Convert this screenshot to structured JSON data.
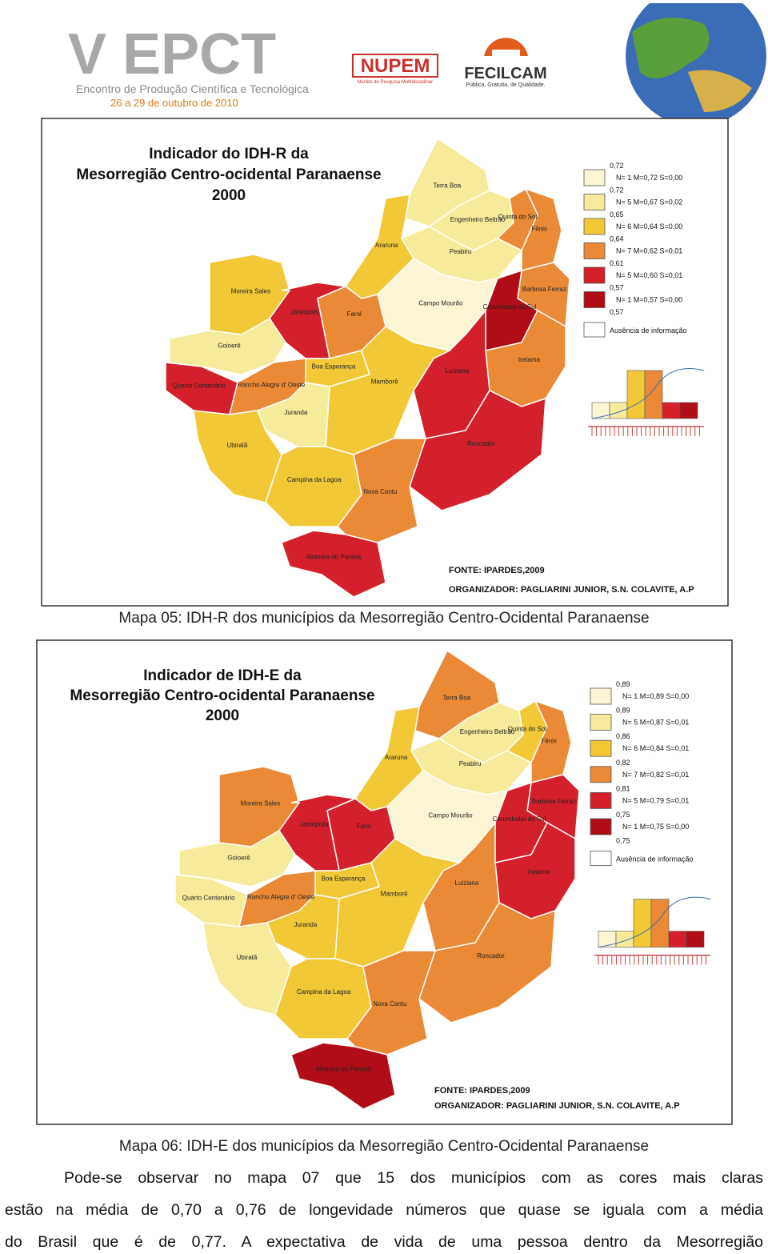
{
  "header": {
    "event": "V EPCT",
    "subtitle": "Encontro de Produção Científica e Tecnológica",
    "dates": "26 a 29 de outubro de 2010",
    "nupem": "NUPEM",
    "nupem_sub": "Núcleo de Pesquisa Multidisciplinar",
    "fecilcam": "FECILCAM",
    "fecilcam_sub": "Pública, Gratuita, de Qualidade."
  },
  "maps": [
    {
      "title": [
        "Indicador do IDH-R da",
        "Mesorregião Centro-ocidental Paranaense",
        "2000"
      ],
      "municipalities": [
        {
          "name": "Terra Boa",
          "color": "#f6eb9a"
        },
        {
          "name": "Engenheiro Beltrão",
          "color": "#f6eb9a"
        },
        {
          "name": "Quinta do Sol",
          "color": "#ea8a36"
        },
        {
          "name": "Fênix",
          "color": "#ea8a36"
        },
        {
          "name": "Peabiru",
          "color": "#f6eb9a"
        },
        {
          "name": "Araruna",
          "color": "#f2c837"
        },
        {
          "name": "Moreira Sales",
          "color": "#f2c837"
        },
        {
          "name": "Barbosa Ferraz",
          "color": "#ea8a36"
        },
        {
          "name": "Campo Mourão",
          "color": "#fbf5d3"
        },
        {
          "name": "Corumbataí do Sul",
          "color": "#b00d17"
        },
        {
          "name": "Janiópolis",
          "color": "#d3202a"
        },
        {
          "name": "Farol",
          "color": "#ea8a36"
        },
        {
          "name": "Goioerê",
          "color": "#f6eb9a"
        },
        {
          "name": "Boa Esperança",
          "color": "#f2c837"
        },
        {
          "name": "Quarto Centenário",
          "color": "#d3202a"
        },
        {
          "name": "Rancho Alegre d' Oeste",
          "color": "#ea8a36"
        },
        {
          "name": "Iretama",
          "color": "#ea8a36"
        },
        {
          "name": "Luiziana",
          "color": "#d3202a"
        },
        {
          "name": "Mamborê",
          "color": "#f2c837"
        },
        {
          "name": "Juranda",
          "color": "#f6eb9a"
        },
        {
          "name": "Ubiratã",
          "color": "#f2c837"
        },
        {
          "name": "Roncador",
          "color": "#d3202a"
        },
        {
          "name": "Campina da Lagoa",
          "color": "#f2c837"
        },
        {
          "name": "Nova Cantu",
          "color": "#ea8a36"
        },
        {
          "name": "Altamira do Paraná",
          "color": "#d3202a"
        }
      ],
      "legend": {
        "breaks": [
          "0,72",
          "0,72",
          "0,65",
          "0,64",
          "0,61",
          "0,57",
          "0,57"
        ],
        "classes": [
          {
            "color": "#fbf5d3",
            "label": "N= 1  M=0,72  S=0,00"
          },
          {
            "color": "#f6eb9a",
            "label": "N= 5  M=0,67  S=0,02"
          },
          {
            "color": "#f2c837",
            "label": "N= 6  M=0,64  S=0,00"
          },
          {
            "color": "#ea8a36",
            "label": "N= 7  M=0,62  S=0,01"
          },
          {
            "color": "#d3202a",
            "label": "N= 5  M=0,60  S=0,01"
          },
          {
            "color": "#b00d17",
            "label": "N= 1  M=0,57  S=0,00"
          }
        ],
        "no_data": "Ausência de informação"
      },
      "source": "FONTE: IPARDES,2009",
      "organizer": "ORGANIZADOR: PAGLIARINI JUNIOR, S.N. COLAVITE, A.P",
      "caption": "Mapa 05: IDH-R dos municípios da Mesorregião Centro-Ocidental Paranaense"
    },
    {
      "title": [
        "Indicador de IDH-E da",
        "Mesorregião Centro-ocidental Paranaense",
        "2000"
      ],
      "municipalities": [
        {
          "name": "Terra Boa",
          "color": "#ea8a36"
        },
        {
          "name": "Engenheiro Beltrão",
          "color": "#f6eb9a"
        },
        {
          "name": "Quinta do Sol",
          "color": "#f2c837"
        },
        {
          "name": "Fênix",
          "color": "#ea8a36"
        },
        {
          "name": "Peabiru",
          "color": "#f6eb9a"
        },
        {
          "name": "Araruna",
          "color": "#f2c837"
        },
        {
          "name": "Moreira Sales",
          "color": "#ea8a36"
        },
        {
          "name": "Barbosa Ferraz",
          "color": "#d3202a"
        },
        {
          "name": "Campo Mourão",
          "color": "#fbf5d3"
        },
        {
          "name": "Corumbataí do Sul",
          "color": "#d3202a"
        },
        {
          "name": "Janiópolis",
          "color": "#d3202a"
        },
        {
          "name": "Farol",
          "color": "#d3202a"
        },
        {
          "name": "Goioerê",
          "color": "#f6eb9a"
        },
        {
          "name": "Boa Esperança",
          "color": "#f2c837"
        },
        {
          "name": "Quarto Centenário",
          "color": "#f6eb9a"
        },
        {
          "name": "Rancho Alegre d' Oeste",
          "color": "#ea8a36"
        },
        {
          "name": "Iretama",
          "color": "#d3202a"
        },
        {
          "name": "Luiziana",
          "color": "#ea8a36"
        },
        {
          "name": "Mamborê",
          "color": "#f2c837"
        },
        {
          "name": "Juranda",
          "color": "#f2c837"
        },
        {
          "name": "Ubiratã",
          "color": "#f6eb9a"
        },
        {
          "name": "Roncador",
          "color": "#ea8a36"
        },
        {
          "name": "Campina da Lagoa",
          "color": "#f2c837"
        },
        {
          "name": "Nova Cantu",
          "color": "#ea8a36"
        },
        {
          "name": "Altamira do Paraná",
          "color": "#b00d17"
        }
      ],
      "legend": {
        "breaks": [
          "0,89",
          "0,89",
          "0,86",
          "0,82",
          "0,81",
          "0,75",
          "0,75"
        ],
        "classes": [
          {
            "color": "#fbf5d3",
            "label": "N= 1  M=0,89  S=0,00"
          },
          {
            "color": "#f6eb9a",
            "label": "N= 5  M=0,87  S=0,01"
          },
          {
            "color": "#f2c837",
            "label": "N= 6  M=0,84  S=0,01"
          },
          {
            "color": "#ea8a36",
            "label": "N= 7  M=0,82  S=0,01"
          },
          {
            "color": "#d3202a",
            "label": "N= 5  M=0,79  S=0,01"
          },
          {
            "color": "#b00d17",
            "label": "N= 1  M=0,75  S=0,00"
          }
        ],
        "no_data": "Ausência de informação"
      },
      "source": "FONTE: IPARDES,2009",
      "organizer": "ORGANIZADOR: PAGLIARINI JUNIOR, S.N. COLAVITE, A.P",
      "caption": "Mapa 06: IDH-E dos municípios da Mesorregião Centro-Ocidental Paranaense"
    }
  ],
  "paragraph": [
    "Pode-se observar no mapa 07 que 15 dos municípios com as cores mais claras",
    "estão na média de 0,70 a 0,76 de longevidade números que quase se iguala com a média",
    "do Brasil que é de 0,77. A expectativa de vida de uma pessoa dentro da Mesorregião"
  ]
}
